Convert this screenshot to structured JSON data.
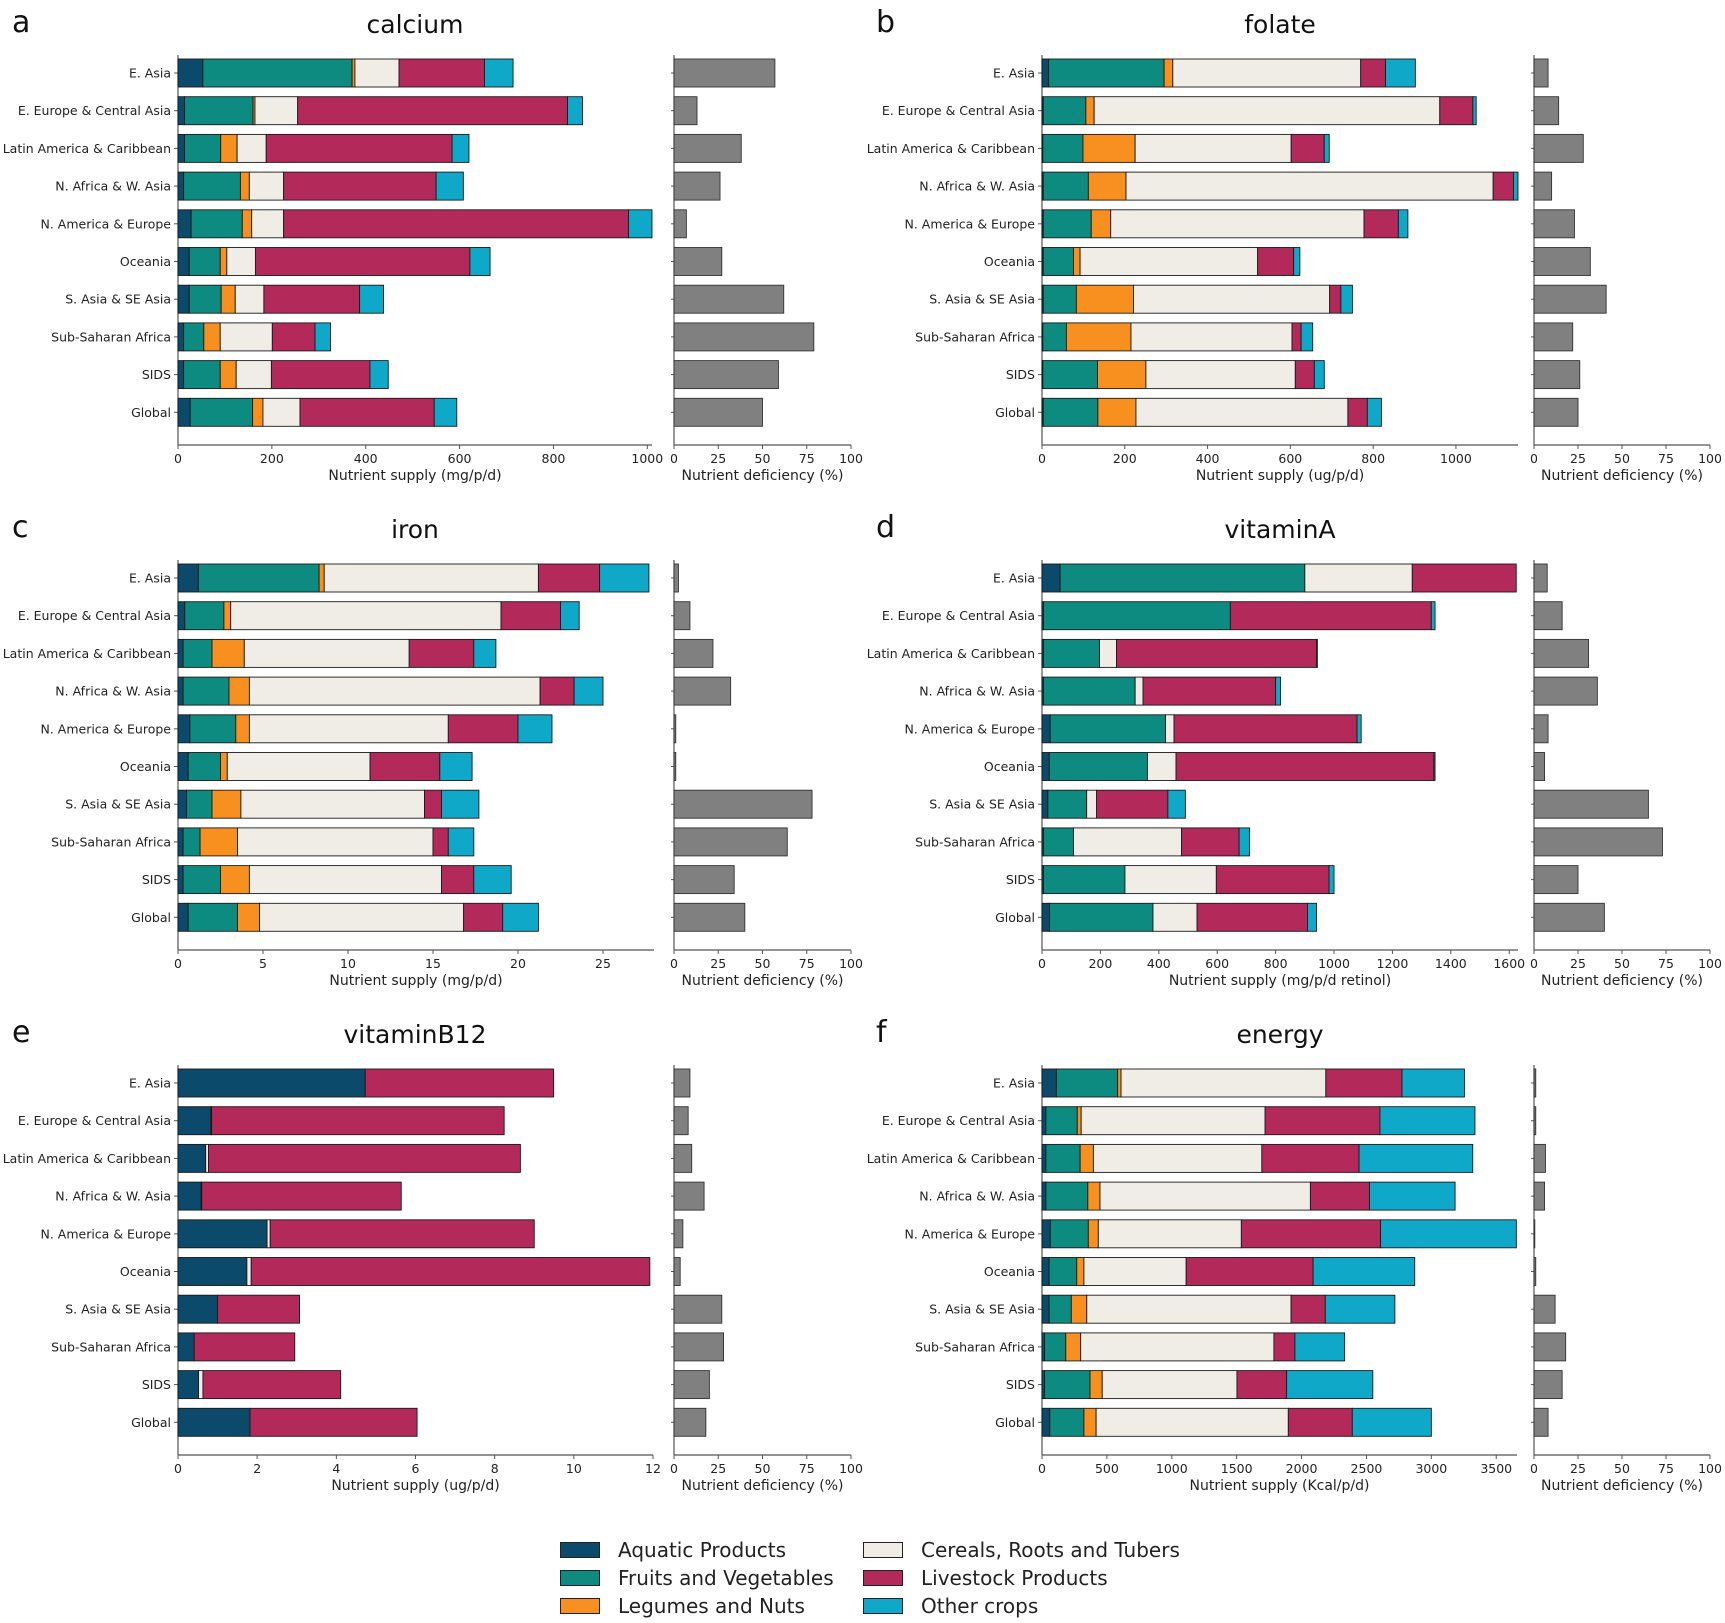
{
  "figure": {
    "panel_letters": [
      "a",
      "b",
      "c",
      "d",
      "e",
      "f"
    ],
    "categories_legend": [
      {
        "name": "Aquatic Products",
        "color": "#0b4a6b"
      },
      {
        "name": "Fruits and Vegetables",
        "color": "#0e8b80"
      },
      {
        "name": "Legumes and Nuts",
        "color": "#f7901e"
      },
      {
        "name": "Cereals, Roots and Tubers",
        "color": "#efede6"
      },
      {
        "name": "Livestock Products",
        "color": "#b3295a"
      },
      {
        "name": "Other crops",
        "color": "#10a8c9"
      }
    ],
    "deficiency_color": "#808080"
  },
  "chart_data": [
    {
      "panel": "a",
      "type": "bar",
      "orientation": "horizontal",
      "stacked": true,
      "title": "calcium",
      "xlabel": "Nutrient supply (mg/p/d)",
      "xlim": [
        0,
        1010
      ],
      "xticks": [
        0,
        200,
        400,
        600,
        800,
        1000
      ],
      "categories": [
        "E. Asia",
        "E. Europe & Central Asia",
        "Latin America & Caribbean",
        "N. Africa & W. Asia",
        "N. America & Europe",
        "Oceania",
        "S. Asia & SE Asia",
        "Sub-Saharan Africa",
        "SIDS",
        "Global"
      ],
      "series": [
        {
          "name": "Aquatic Products",
          "values": [
            53,
            14,
            14,
            12,
            28,
            24,
            24,
            12,
            12,
            26
          ]
        },
        {
          "name": "Fruits and Vegetables",
          "values": [
            318,
            146,
            77,
            121,
            109,
            66,
            68,
            43,
            78,
            133
          ]
        },
        {
          "name": "Legumes and Nuts",
          "values": [
            6,
            4,
            35,
            19,
            20,
            14,
            30,
            35,
            34,
            22
          ]
        },
        {
          "name": "Cereals, Roots and Tubers",
          "values": [
            94,
            91,
            62,
            73,
            68,
            61,
            61,
            111,
            75,
            79
          ]
        },
        {
          "name": "Livestock Products",
          "values": [
            182,
            575,
            396,
            325,
            735,
            457,
            204,
            91,
            210,
            286
          ]
        },
        {
          "name": "Other crops",
          "values": [
            61,
            32,
            36,
            58,
            50,
            43,
            51,
            33,
            39,
            48
          ]
        }
      ],
      "deficiency": {
        "xlabel": "Nutrient deficiency (%)",
        "xlim": [
          0,
          100
        ],
        "xticks": [
          0,
          25,
          50,
          75,
          100
        ],
        "values": [
          57,
          13,
          38,
          26,
          7,
          27,
          62,
          79,
          59,
          50
        ]
      }
    },
    {
      "panel": "b",
      "type": "bar",
      "orientation": "horizontal",
      "stacked": true,
      "title": "folate",
      "xlabel": "Nutrient supply (ug/p/d)",
      "xlim": [
        0,
        1150
      ],
      "xticks": [
        0,
        200,
        400,
        600,
        800,
        1000
      ],
      "categories": [
        "E. Asia",
        "E. Europe & Central Asia",
        "Latin America & Caribbean",
        "N. Africa & W. Asia",
        "N. America & Europe",
        "Oceania",
        "S. Asia & SE Asia",
        "Sub-Saharan Africa",
        "SIDS",
        "Global"
      ],
      "series": [
        {
          "name": "Aquatic Products",
          "values": [
            16,
            3,
            2,
            3,
            3,
            3,
            3,
            2,
            2,
            3
          ]
        },
        {
          "name": "Fruits and Vegetables",
          "values": [
            279,
            103,
            97,
            109,
            116,
            73,
            80,
            57,
            132,
            132
          ]
        },
        {
          "name": "Legumes and Nuts",
          "values": [
            21,
            20,
            126,
            91,
            47,
            16,
            138,
            156,
            117,
            92
          ]
        },
        {
          "name": "Cereals, Roots and Tubers",
          "values": [
            454,
            835,
            377,
            887,
            612,
            429,
            474,
            389,
            361,
            512
          ]
        },
        {
          "name": "Livestock Products",
          "values": [
            60,
            80,
            80,
            49,
            83,
            87,
            27,
            22,
            46,
            47
          ]
        },
        {
          "name": "Other crops",
          "values": [
            72,
            8,
            12,
            11,
            23,
            15,
            28,
            28,
            24,
            34
          ]
        }
      ],
      "deficiency": {
        "xlabel": "Nutrient deficiency (%)",
        "xlim": [
          0,
          100
        ],
        "xticks": [
          0,
          25,
          50,
          75,
          100
        ],
        "values": [
          8,
          14,
          28,
          10,
          23,
          32,
          41,
          22,
          26,
          25
        ]
      }
    },
    {
      "panel": "c",
      "type": "bar",
      "orientation": "horizontal",
      "stacked": true,
      "title": "iron",
      "xlabel": "Nutrient supply (mg/p/d)",
      "xlim": [
        0,
        28
      ],
      "xticks": [
        0,
        5,
        10,
        15,
        20,
        25
      ],
      "categories": [
        "E. Asia",
        "E. Europe & Central Asia",
        "Latin America & Caribbean",
        "N. Africa & W. Asia",
        "N. America & Europe",
        "Oceania",
        "S. Asia & SE Asia",
        "Sub-Saharan Africa",
        "SIDS",
        "Global"
      ],
      "series": [
        {
          "name": "Aquatic Products",
          "values": [
            1.2,
            0.4,
            0.3,
            0.3,
            0.7,
            0.6,
            0.5,
            0.3,
            0.3,
            0.6
          ]
        },
        {
          "name": "Fruits and Vegetables",
          "values": [
            7.1,
            2.3,
            1.7,
            2.7,
            2.7,
            1.9,
            1.5,
            1.0,
            2.2,
            2.9
          ]
        },
        {
          "name": "Legumes and Nuts",
          "values": [
            0.3,
            0.4,
            1.9,
            1.2,
            0.8,
            0.4,
            1.7,
            2.2,
            1.7,
            1.3
          ]
        },
        {
          "name": "Cereals, Roots and Tubers",
          "values": [
            12.6,
            15.9,
            9.7,
            17.1,
            11.7,
            8.4,
            10.8,
            11.5,
            11.3,
            12.0
          ]
        },
        {
          "name": "Livestock Products",
          "values": [
            3.6,
            3.5,
            3.8,
            2.0,
            4.1,
            4.1,
            1.0,
            0.9,
            1.9,
            2.3
          ]
        },
        {
          "name": "Other crops",
          "values": [
            2.9,
            1.1,
            1.3,
            1.7,
            2.0,
            1.9,
            2.2,
            1.5,
            2.2,
            2.1
          ]
        }
      ],
      "deficiency": {
        "xlabel": "Nutrient deficiency (%)",
        "xlim": [
          0,
          100
        ],
        "xticks": [
          0,
          25,
          50,
          75,
          100
        ],
        "values": [
          2.5,
          9,
          22,
          32,
          1,
          1,
          78,
          64,
          34,
          40
        ]
      }
    },
    {
      "panel": "d",
      "type": "bar",
      "orientation": "horizontal",
      "stacked": true,
      "title": "vitaminA",
      "xlabel": "Nutrient supply (mg/p/d retinol)",
      "xlim": [
        0,
        1630
      ],
      "xticks": [
        0,
        200,
        400,
        600,
        800,
        1000,
        1200,
        1400,
        1600
      ],
      "categories": [
        "E. Asia",
        "E. Europe & Central Asia",
        "Latin America & Caribbean",
        "N. Africa & W. Asia",
        "N. America & Europe",
        "Oceania",
        "S. Asia & SE Asia",
        "Sub-Saharan Africa",
        "SIDS",
        "Global"
      ],
      "series": [
        {
          "name": "Aquatic Products",
          "values": [
            62,
            5,
            5,
            5,
            28,
            25,
            20,
            5,
            5,
            26
          ]
        },
        {
          "name": "Fruits and Vegetables",
          "values": [
            838,
            640,
            192,
            314,
            395,
            336,
            133,
            103,
            279,
            354
          ]
        },
        {
          "name": "Legumes and Nuts",
          "values": [
            0,
            0,
            0,
            0,
            0,
            0,
            0,
            0,
            0,
            0
          ]
        },
        {
          "name": "Cereals, Roots and Tubers",
          "values": [
            368,
            0,
            58,
            27,
            29,
            98,
            34,
            370,
            313,
            151
          ]
        },
        {
          "name": "Livestock Products",
          "values": [
            356,
            688,
            685,
            454,
            627,
            883,
            244,
            197,
            386,
            378
          ]
        },
        {
          "name": "Other crops",
          "values": [
            0,
            13,
            3,
            17,
            14,
            4,
            60,
            36,
            17,
            31
          ]
        }
      ],
      "deficiency": {
        "xlabel": "Nutrient deficiency (%)",
        "xlim": [
          0,
          100
        ],
        "xticks": [
          0,
          25,
          50,
          75,
          100
        ],
        "values": [
          7.5,
          16,
          31,
          36,
          8,
          6,
          65,
          73,
          25,
          40
        ]
      }
    },
    {
      "panel": "e",
      "type": "bar",
      "orientation": "horizontal",
      "stacked": true,
      "title": "vitaminB12",
      "xlabel": "Nutrient supply (ug/p/d)",
      "xlim": [
        0,
        12
      ],
      "xticks": [
        0,
        2,
        4,
        6,
        8,
        10,
        12
      ],
      "categories": [
        "E. Asia",
        "E. Europe & Central Asia",
        "Latin America & Caribbean",
        "N. Africa & W. Asia",
        "N. America & Europe",
        "Oceania",
        "S. Asia & SE Asia",
        "Sub-Saharan Africa",
        "SIDS",
        "Global"
      ],
      "series": [
        {
          "name": "Aquatic Products",
          "values": [
            4.73,
            0.83,
            0.7,
            0.58,
            2.25,
            1.74,
            1.0,
            0.41,
            0.52,
            1.82
          ]
        },
        {
          "name": "Fruits and Vegetables",
          "values": [
            0,
            0,
            0,
            0,
            0,
            0,
            0,
            0,
            0,
            0
          ]
        },
        {
          "name": "Legumes and Nuts",
          "values": [
            0,
            0,
            0,
            0,
            0,
            0,
            0,
            0,
            0,
            0
          ]
        },
        {
          "name": "Cereals, Roots and Tubers",
          "values": [
            0,
            0.02,
            0.07,
            0.02,
            0.08,
            0.11,
            0,
            0,
            0.11,
            0
          ]
        },
        {
          "name": "Livestock Products",
          "values": [
            4.76,
            7.39,
            7.88,
            5.04,
            6.67,
            10.07,
            2.07,
            2.54,
            3.48,
            4.22
          ]
        },
        {
          "name": "Other crops",
          "values": [
            0,
            0,
            0,
            0,
            0,
            0,
            0,
            0,
            0,
            0
          ]
        }
      ],
      "deficiency": {
        "xlabel": "Nutrient deficiency (%)",
        "xlim": [
          0,
          100
        ],
        "xticks": [
          0,
          25,
          50,
          75,
          100
        ],
        "values": [
          9,
          8,
          10,
          17,
          5,
          3.5,
          27,
          28,
          20,
          18
        ]
      }
    },
    {
      "panel": "f",
      "type": "bar",
      "orientation": "horizontal",
      "stacked": true,
      "title": "energy",
      "xlabel": "Nutrient supply (Kcal/p/d)",
      "xlim": [
        0,
        3660
      ],
      "xticks": [
        0,
        500,
        1000,
        1500,
        2000,
        2500,
        3000,
        3500
      ],
      "categories": [
        "E. Asia",
        "E. Europe & Central Asia",
        "Latin America & Caribbean",
        "N. Africa & W. Asia",
        "N. America & Europe",
        "Oceania",
        "S. Asia & SE Asia",
        "Sub-Saharan Africa",
        "SIDS",
        "Global"
      ],
      "series": [
        {
          "name": "Aquatic Products",
          "values": [
            111,
            30,
            30,
            30,
            64,
            55,
            55,
            20,
            20,
            60
          ]
        },
        {
          "name": "Fruits and Vegetables",
          "values": [
            472,
            242,
            264,
            323,
            293,
            213,
            171,
            163,
            350,
            263
          ]
        },
        {
          "name": "Legumes and Nuts",
          "values": [
            26,
            30,
            102,
            94,
            77,
            55,
            119,
            115,
            94,
            94
          ]
        },
        {
          "name": "Cereals, Roots and Tubers",
          "values": [
            1578,
            1417,
            1298,
            1621,
            1102,
            788,
            1574,
            1489,
            1038,
            1481
          ]
        },
        {
          "name": "Livestock Products",
          "values": [
            587,
            885,
            749,
            455,
            1073,
            978,
            264,
            162,
            383,
            493
          ]
        },
        {
          "name": "Other crops",
          "values": [
            481,
            732,
            876,
            660,
            1046,
            783,
            536,
            383,
            664,
            609
          ]
        }
      ],
      "deficiency": {
        "xlabel": "Nutrient deficiency (%)",
        "xlim": [
          0,
          100
        ],
        "xticks": [
          0,
          25,
          50,
          75,
          100
        ],
        "values": [
          1,
          1,
          6.5,
          6,
          0.3,
          1,
          12,
          18,
          16,
          8
        ]
      }
    }
  ]
}
